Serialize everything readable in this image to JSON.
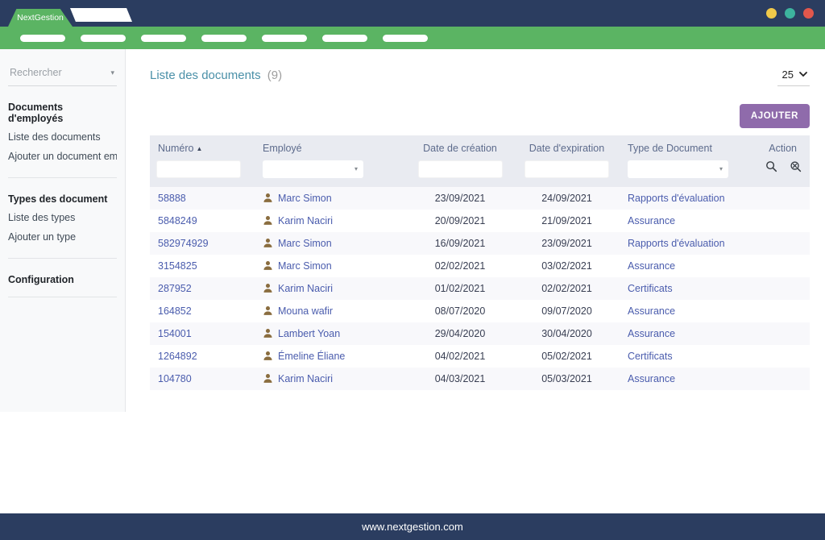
{
  "window": {
    "dots": [
      {
        "name": "minimize",
        "color": "#f0c94a"
      },
      {
        "name": "maximize",
        "color": "#3db39e"
      },
      {
        "name": "close",
        "color": "#e1574c"
      }
    ]
  },
  "navbar": {
    "brand": "NextGestion",
    "pill_count": 7,
    "bar_color": "#5bb463",
    "navy_color": "#2b3d60"
  },
  "sidebar": {
    "search_placeholder": "Rechercher",
    "sections": [
      {
        "title": "Documents d'employés",
        "items": [
          "Liste des documents",
          "Ajouter un document em..."
        ]
      },
      {
        "title": "Types des document",
        "items": [
          "Liste des types",
          "Ajouter un type"
        ]
      },
      {
        "title": "Configuration",
        "items": []
      }
    ]
  },
  "main": {
    "title": "Liste des documents",
    "count": "(9)",
    "page_size": "25",
    "add_button": "AJOUTER",
    "table": {
      "columns": [
        "Numéro",
        "Employé",
        "Date de création",
        "Date d'expiration",
        "Type de Document",
        "Action"
      ],
      "rows": [
        {
          "numero": "58888",
          "employe": "Marc Simon",
          "creation": "23/09/2021",
          "expiration": "24/09/2021",
          "type": "Rapports d'évaluation"
        },
        {
          "numero": "5848249",
          "employe": "Karim Naciri",
          "creation": "20/09/2021",
          "expiration": "21/09/2021",
          "type": "Assurance"
        },
        {
          "numero": "582974929",
          "employe": "Marc Simon",
          "creation": "16/09/2021",
          "expiration": "23/09/2021",
          "type": "Rapports d'évaluation"
        },
        {
          "numero": "3154825",
          "employe": "Marc Simon",
          "creation": "02/02/2021",
          "expiration": "03/02/2021",
          "type": "Assurance"
        },
        {
          "numero": "287952",
          "employe": "Karim Naciri",
          "creation": "01/02/2021",
          "expiration": "02/02/2021",
          "type": "Certificats"
        },
        {
          "numero": "164852",
          "employe": "Mouna wafir",
          "creation": "08/07/2020",
          "expiration": "09/07/2020",
          "type": "Assurance"
        },
        {
          "numero": "154001",
          "employe": "Lambert Yoan",
          "creation": "29/04/2020",
          "expiration": "30/04/2020",
          "type": "Assurance"
        },
        {
          "numero": "1264892",
          "employe": "Émeline Éliane",
          "creation": "04/02/2021",
          "expiration": "05/02/2021",
          "type": "Certificats"
        },
        {
          "numero": "104780",
          "employe": "Karim Naciri",
          "creation": "04/03/2021",
          "expiration": "05/03/2021",
          "type": "Assurance"
        }
      ]
    }
  },
  "icons": {
    "sort_asc": "▲",
    "caret_down": "▾",
    "search": "magnifier",
    "reset_search": "magnifier-x",
    "person": "user-silhouette"
  },
  "colors": {
    "accent_green": "#5bb463",
    "navy": "#2b3d60",
    "purple_button": "#8f6bab",
    "title_teal": "#4a90a8",
    "link_blue": "#4a5cad",
    "person_icon": "#8a6d3f",
    "table_header_bg": "#e9ebf1"
  },
  "footer": {
    "text": "www.nextgestion.com"
  }
}
